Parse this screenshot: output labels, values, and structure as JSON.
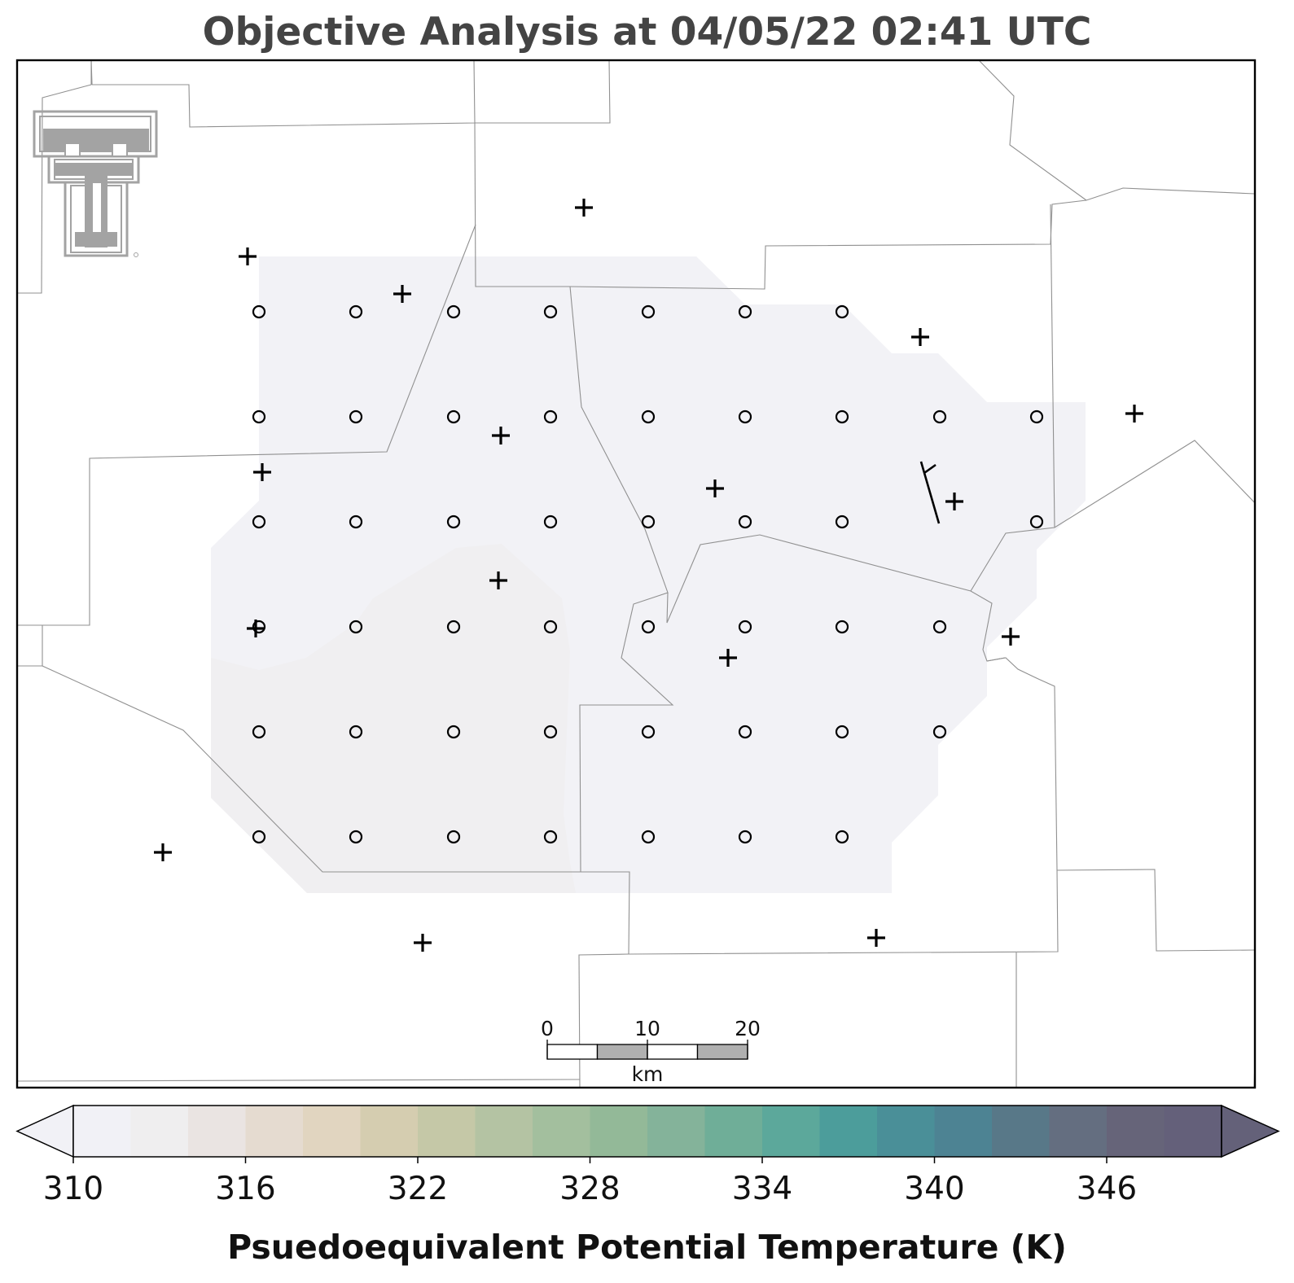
{
  "title": "Objective Analysis at 04/05/22 02:41 UTC",
  "scale_bar": {
    "labels": [
      "0",
      "10",
      "20"
    ],
    "unit": "km"
  },
  "colorbar": {
    "label": "Psuedoequivalent Potential Temperature (K)",
    "min": 310,
    "max": 350,
    "step": 2,
    "extend": "both",
    "tick_labels": [
      "310",
      "316",
      "322",
      "328",
      "334",
      "340",
      "346"
    ],
    "colors": [
      "#f1f1f6",
      "#efeeef",
      "#eae4e2",
      "#e5dbd0",
      "#e1d5c0",
      "#d5cdb0",
      "#c5c8a7",
      "#b4c3a3",
      "#a3bf9e",
      "#93b998",
      "#84b39a",
      "#6fae98",
      "#5ca89b",
      "#4c9d9b",
      "#4a8f98",
      "#4d8393",
      "#587888",
      "#646e80",
      "#666479",
      "#64607a",
      "#646179"
    ]
  },
  "analysis_fill": {
    "dominant_color": "#f2f2f6",
    "lower_left_color": "#f0eff1"
  },
  "grid_marker": "circle",
  "station_marker": "plus",
  "wind_barb_count": 1,
  "logo": "Texas Tech double-T logo"
}
